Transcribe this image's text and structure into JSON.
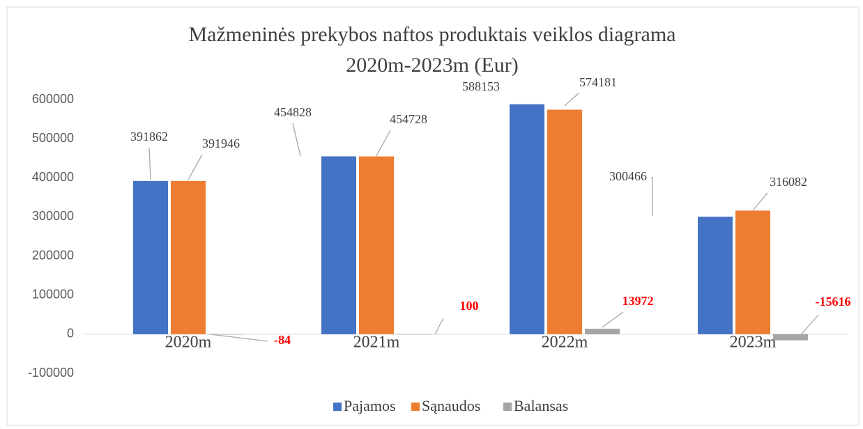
{
  "chart_data": {
    "type": "bar",
    "title": [
      "Mažmeninės prekybos naftos produktais veiklos diagrama",
      "2020m-2023m (Eur)"
    ],
    "categories": [
      "2020m",
      "2021m",
      "2022m",
      "2023m"
    ],
    "series": [
      {
        "name": "Pajamos",
        "color": "#4472c4",
        "values": [
          391862,
          454828,
          588153,
          300466
        ]
      },
      {
        "name": "Sąnaudos",
        "color": "#ed7d31",
        "values": [
          391946,
          454728,
          574181,
          316082
        ]
      },
      {
        "name": "Balansas",
        "color": "#a5a5a5",
        "values": [
          -84,
          100,
          13972,
          -15616
        ],
        "label_color": "#ff0000",
        "label_bold": true
      }
    ],
    "ylim": [
      -100000,
      600000
    ],
    "yticks": [
      -100000,
      0,
      100000,
      200000,
      300000,
      400000,
      500000,
      600000
    ],
    "grid": false,
    "legend": "bottom"
  }
}
